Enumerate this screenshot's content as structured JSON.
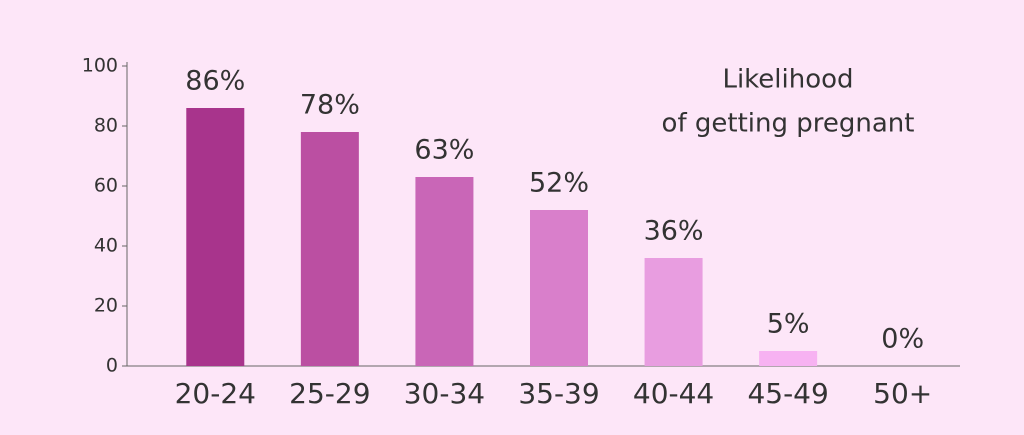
{
  "chart_data": {
    "type": "bar",
    "title": [
      "Likelihood",
      "of getting pregnant"
    ],
    "categories": [
      "20-24",
      "25-29",
      "30-34",
      "35-39",
      "40-44",
      "45-49",
      "50+"
    ],
    "values": [
      86,
      78,
      63,
      52,
      36,
      5,
      0
    ],
    "value_labels": [
      "86%",
      "78%",
      "63%",
      "52%",
      "36%",
      "5%",
      "0%"
    ],
    "colors": [
      "#a8348c",
      "#bb4fa2",
      "#c966b7",
      "#d97fcb",
      "#e89de0",
      "#f7b2f2",
      "#f7b2f2"
    ],
    "ylim": [
      0,
      100
    ],
    "yticks": [
      0,
      20,
      40,
      60,
      80,
      100
    ],
    "grid": false
  }
}
